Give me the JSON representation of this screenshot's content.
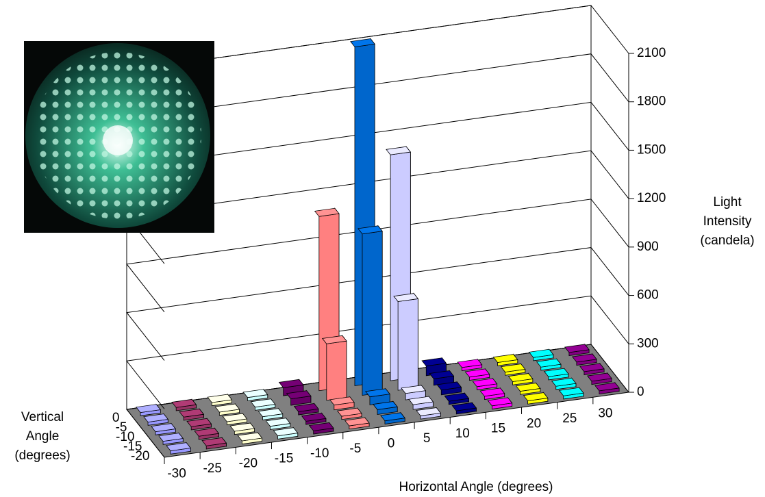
{
  "chart_data": {
    "type": "bar3d",
    "categories": [
      -30,
      -25,
      -20,
      -15,
      -10,
      -5,
      0,
      5,
      10,
      15,
      20,
      25,
      30
    ],
    "rows": [
      0,
      -5,
      -10,
      -15,
      -20
    ],
    "colors": [
      "#9999ff",
      "#993366",
      "#ffffcc",
      "#ccffff",
      "#660066",
      "#ff8080",
      "#0066cc",
      "#ccccff",
      "#000080",
      "#ff00ff",
      "#ffff00",
      "#00ffff",
      "#800080"
    ],
    "values": [
      [
        20,
        20,
        20,
        20,
        50,
        1080,
        2100,
        1400,
        60,
        20,
        20,
        20,
        20
      ],
      [
        20,
        20,
        20,
        20,
        40,
        350,
        1000,
        550,
        40,
        20,
        20,
        20,
        20
      ],
      [
        20,
        20,
        20,
        20,
        20,
        30,
        50,
        40,
        30,
        20,
        20,
        20,
        20
      ],
      [
        20,
        20,
        20,
        20,
        20,
        20,
        30,
        30,
        20,
        20,
        20,
        20,
        20
      ],
      [
        20,
        20,
        20,
        20,
        20,
        20,
        20,
        20,
        20,
        20,
        20,
        20,
        20
      ]
    ],
    "ylim": [
      0,
      2100
    ],
    "yticks": [
      0,
      300,
      600,
      900,
      1200,
      1500,
      1800,
      2100
    ],
    "xlabel": "Horizontal Angle (degrees)",
    "rowlabel": [
      "Vertical",
      "Angle",
      "(degrees)"
    ],
    "ylabel": [
      "Light",
      "Intensity",
      "(candela)"
    ]
  }
}
